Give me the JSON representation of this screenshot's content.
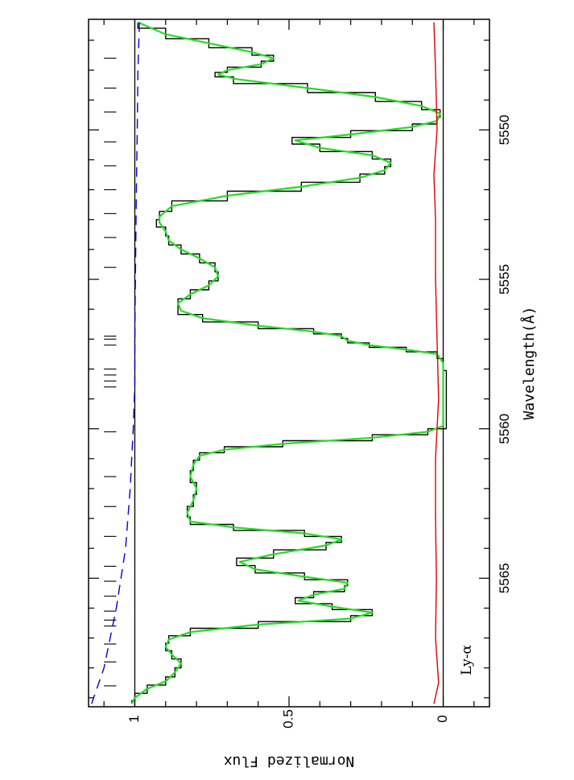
{
  "chart_data": {
    "type": "line",
    "orientation": "rotated 90 degrees (wavelength runs top to bottom, flux increases right to left)",
    "title": "",
    "xlabel": "Wavelength(Å)",
    "ylabel": "Normalized Flux",
    "xlim": [
      5546.3,
      5569.3
    ],
    "ylim": [
      -0.15,
      1.15
    ],
    "x_ticks": [
      5550,
      5555,
      5560,
      5565
    ],
    "x_tick_labels": [
      "5550",
      "5555",
      "5560",
      "5565"
    ],
    "y_ticks": [
      0,
      0.5,
      1
    ],
    "y_tick_labels": [
      "0",
      "0.5",
      "1"
    ],
    "annotation": "Ly-α",
    "reference_lines": [
      0,
      1
    ],
    "component_marks": [
      5547.6,
      5548.6,
      5549.4,
      5550.4,
      5551.2,
      5552.0,
      5552.8,
      5553.6,
      5554.6,
      5556.9,
      5557.0,
      5557.2,
      5558.0,
      5558.2,
      5558.4,
      5558.6,
      5560.1,
      5561.6,
      5562.6,
      5563.6,
      5564.6,
      5565.1,
      5565.6,
      5566.1,
      5566.4,
      5566.6,
      5567.2,
      5567.8,
      5568.6
    ],
    "series": [
      {
        "name": "",
        "color": "#000000",
        "style": "histogram",
        "x": [
          5546.4,
          5546.8,
          5547.1,
          5547.4,
          5547.6,
          5547.8,
          5548.0,
          5548.15,
          5548.3,
          5548.6,
          5548.9,
          5549.2,
          5549.45,
          5549.7,
          5549.9,
          5550.15,
          5550.35,
          5550.6,
          5550.85,
          5551.1,
          5551.35,
          5551.6,
          5551.9,
          5552.2,
          5552.55,
          5552.9,
          5553.1,
          5553.4,
          5553.7,
          5554.0,
          5554.3,
          5554.6,
          5554.9,
          5555.2,
          5555.5,
          5555.8,
          5556.05,
          5556.3,
          5556.55,
          5556.75,
          5556.9,
          5557.05,
          5557.2,
          5557.35,
          5557.5,
          5557.8,
          5558.3,
          5558.9,
          5559.4,
          5559.9,
          5560.1,
          5560.3,
          5560.5,
          5560.7,
          5560.9,
          5561.2,
          5561.6,
          5562.0,
          5562.4,
          5562.8,
          5563.1,
          5563.3,
          5563.5,
          5563.7,
          5563.9,
          5564.2,
          5564.45,
          5564.7,
          5564.95,
          5565.15,
          5565.35,
          5565.55,
          5565.75,
          5565.95,
          5566.15,
          5566.35,
          5566.55,
          5566.8,
          5567.05,
          5567.3,
          5567.55,
          5567.85,
          5568.15,
          5568.45,
          5568.7,
          5569.0,
          5569.2
        ],
        "y": [
          0.99,
          0.9,
          0.76,
          0.62,
          0.55,
          0.59,
          0.7,
          0.74,
          0.68,
          0.44,
          0.22,
          0.07,
          0.01,
          0.02,
          0.1,
          0.3,
          0.49,
          0.4,
          0.23,
          0.17,
          0.19,
          0.27,
          0.46,
          0.7,
          0.88,
          0.92,
          0.93,
          0.9,
          0.89,
          0.85,
          0.79,
          0.74,
          0.73,
          0.76,
          0.82,
          0.86,
          0.86,
          0.78,
          0.6,
          0.42,
          0.33,
          0.31,
          0.24,
          0.12,
          0.02,
          0.0,
          -0.01,
          -0.01,
          -0.01,
          -0.01,
          0.05,
          0.23,
          0.52,
          0.71,
          0.79,
          0.81,
          0.82,
          0.8,
          0.81,
          0.83,
          0.82,
          0.68,
          0.45,
          0.33,
          0.38,
          0.55,
          0.67,
          0.61,
          0.45,
          0.31,
          0.32,
          0.42,
          0.48,
          0.36,
          0.23,
          0.3,
          0.6,
          0.82,
          0.89,
          0.9,
          0.88,
          0.85,
          0.87,
          0.9,
          0.96,
          1.0,
          1.01
        ]
      },
      {
        "name": "",
        "color": "#22dd22",
        "style": "fit",
        "x": [
          5546.4,
          5546.8,
          5547.1,
          5547.4,
          5547.6,
          5547.8,
          5548.0,
          5548.15,
          5548.3,
          5548.6,
          5548.9,
          5549.2,
          5549.45,
          5549.7,
          5549.9,
          5550.15,
          5550.35,
          5550.6,
          5550.85,
          5551.1,
          5551.35,
          5551.6,
          5551.9,
          5552.2,
          5552.55,
          5552.9,
          5553.1,
          5553.4,
          5553.7,
          5554.0,
          5554.3,
          5554.6,
          5554.9,
          5555.2,
          5555.5,
          5555.8,
          5556.05,
          5556.3,
          5556.55,
          5556.75,
          5556.9,
          5557.05,
          5557.2,
          5557.35,
          5557.5,
          5557.8,
          5558.3,
          5558.9,
          5559.4,
          5559.9,
          5560.1,
          5560.3,
          5560.5,
          5560.7,
          5560.9,
          5561.2,
          5561.6,
          5562.0,
          5562.4,
          5562.8,
          5563.1,
          5563.3,
          5563.5,
          5563.7,
          5563.9,
          5564.2,
          5564.45,
          5564.7,
          5564.95,
          5565.15,
          5565.35,
          5565.55,
          5565.75,
          5565.95,
          5566.15,
          5566.35,
          5566.55,
          5566.8,
          5567.05,
          5567.3,
          5567.55,
          5567.85,
          5568.15,
          5568.45,
          5568.7,
          5569.0,
          5569.2
        ],
        "y": [
          0.99,
          0.9,
          0.76,
          0.62,
          0.55,
          0.59,
          0.7,
          0.73,
          0.67,
          0.44,
          0.22,
          0.07,
          0.01,
          0.02,
          0.1,
          0.3,
          0.48,
          0.4,
          0.23,
          0.17,
          0.19,
          0.27,
          0.46,
          0.7,
          0.88,
          0.92,
          0.92,
          0.9,
          0.89,
          0.85,
          0.79,
          0.74,
          0.73,
          0.76,
          0.82,
          0.86,
          0.85,
          0.78,
          0.6,
          0.42,
          0.33,
          0.31,
          0.24,
          0.12,
          0.02,
          0.0,
          0.0,
          0.0,
          0.0,
          0.0,
          0.05,
          0.23,
          0.52,
          0.71,
          0.79,
          0.81,
          0.82,
          0.8,
          0.81,
          0.83,
          0.82,
          0.68,
          0.45,
          0.33,
          0.38,
          0.55,
          0.66,
          0.61,
          0.45,
          0.31,
          0.32,
          0.42,
          0.47,
          0.36,
          0.23,
          0.3,
          0.6,
          0.82,
          0.89,
          0.9,
          0.88,
          0.85,
          0.87,
          0.9,
          0.96,
          1.0,
          1.01
        ]
      },
      {
        "name": "",
        "color": "#dd0000",
        "style": "error",
        "x": [
          5546.4,
          5548.0,
          5550.0,
          5551.5,
          5553.0,
          5555.0,
          5557.0,
          5559.0,
          5561.0,
          5563.0,
          5565.0,
          5567.0,
          5568.5,
          5569.2
        ],
        "y": [
          0.03,
          0.025,
          0.02,
          0.03,
          0.025,
          0.025,
          0.02,
          0.015,
          0.025,
          0.025,
          0.022,
          0.025,
          0.015,
          0.03
        ]
      },
      {
        "name": "",
        "color": "#0000dd",
        "style": "dashed",
        "x": [
          5546.4,
          5548.0,
          5550.0,
          5552.0,
          5554.0,
          5556.0,
          5557.5,
          5558.5,
          5560.0,
          5562.0,
          5564.0,
          5566.0,
          5568.0,
          5569.2
        ],
        "y": [
          0.985,
          0.99,
          0.992,
          0.995,
          0.997,
          0.999,
          1.0,
          1.0,
          1.005,
          1.015,
          1.03,
          1.06,
          1.1,
          1.14
        ]
      }
    ]
  }
}
